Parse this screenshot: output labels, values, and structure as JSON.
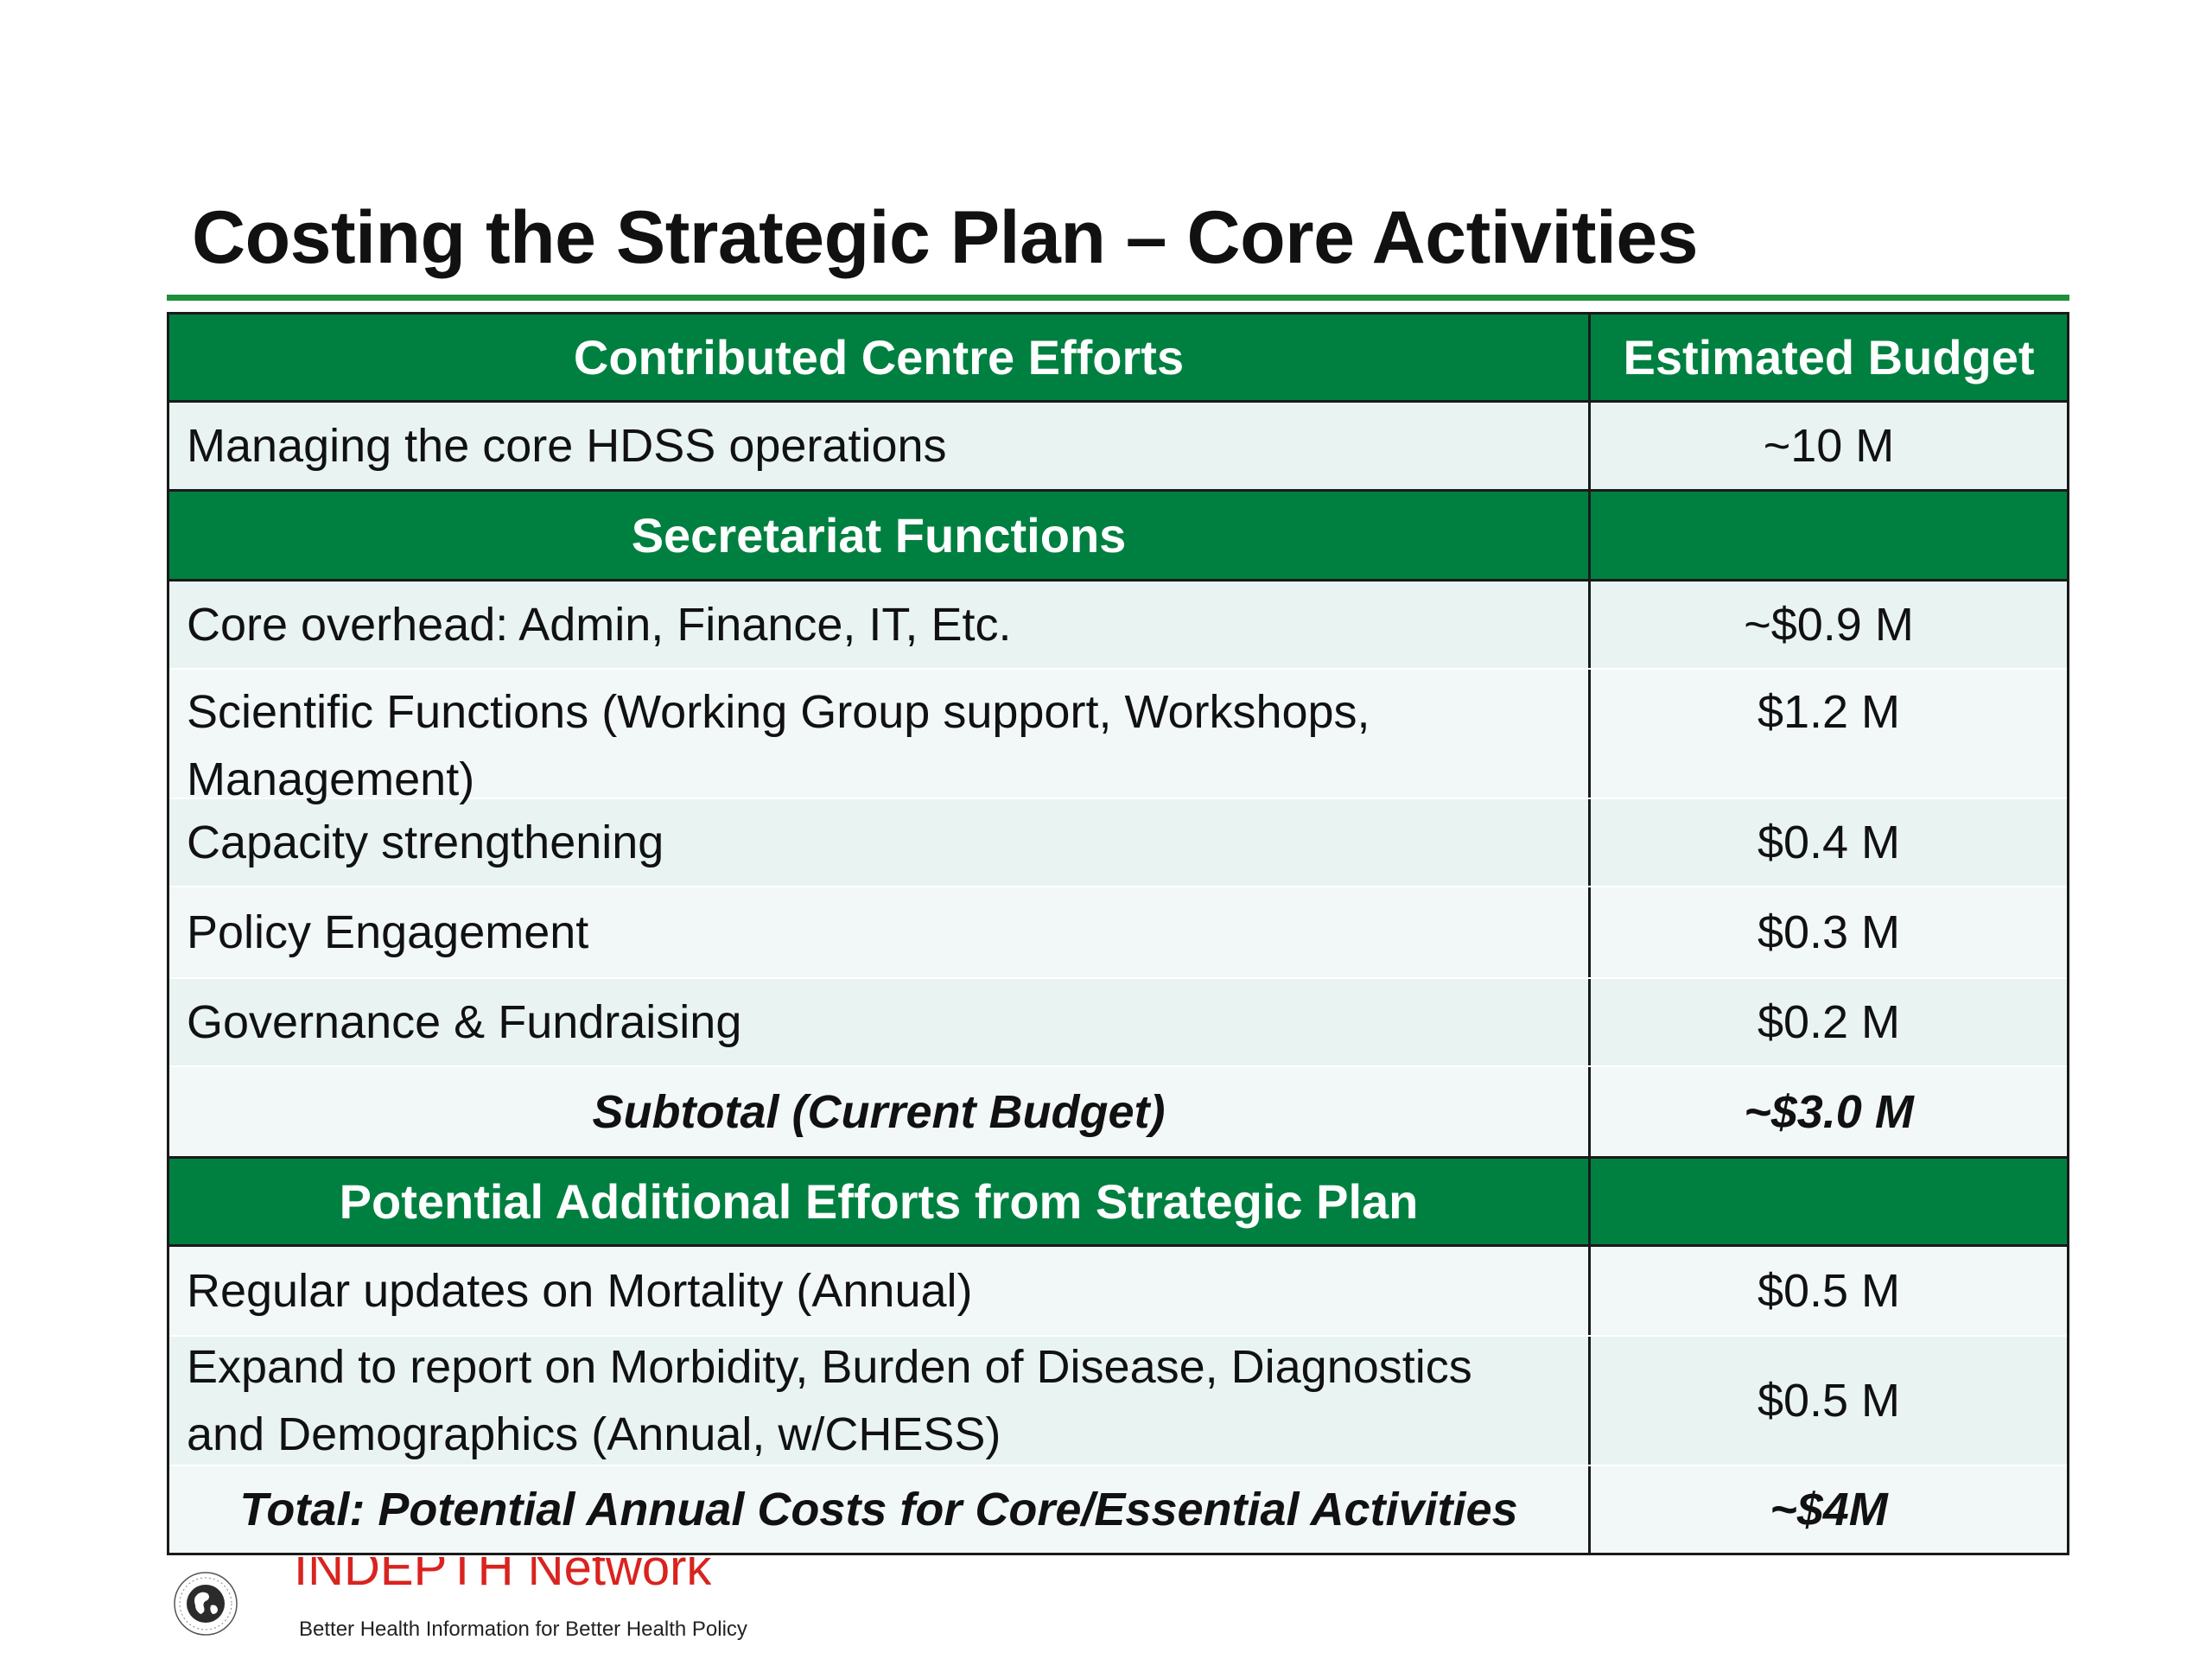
{
  "title": "Costing the Strategic Plan – Core Activities",
  "table": {
    "header": {
      "left": "Contributed Centre Efforts",
      "right": "Estimated Budget"
    },
    "contributed_row": {
      "label": "Managing the core HDSS operations",
      "value": "~10 M"
    },
    "secretariat_header": {
      "left": "Secretariat Functions",
      "right": ""
    },
    "secretariat_rows": [
      {
        "label": "Core overhead: Admin, Finance, IT, Etc.",
        "value": "~$0.9 M"
      },
      {
        "label": "Scientific Functions (Working Group support, Workshops, Management)",
        "value": "$1.2 M"
      },
      {
        "label": "Capacity strengthening",
        "value": "$0.4 M"
      },
      {
        "label": "Policy Engagement",
        "value": "$0.3 M"
      },
      {
        "label": "Governance & Fundraising",
        "value": "$0.2 M"
      }
    ],
    "subtotal": {
      "label": "Subtotal (Current Budget)",
      "value": "~$3.0 M"
    },
    "additional_header": {
      "left": "Potential Additional Efforts from Strategic Plan",
      "right": ""
    },
    "additional_rows": [
      {
        "label": "Regular updates on Mortality (Annual)",
        "value": "$0.5 M"
      },
      {
        "label": "Expand to report on Morbidity, Burden of Disease, Diagnostics and Demographics (Annual, w/CHESS)",
        "value": "$0.5 M"
      }
    ],
    "total": {
      "label": "Total: Potential Annual Costs for Core/Essential Activities",
      "value": "~$4M"
    }
  },
  "footer": {
    "logo_icon": "globe-logo-icon",
    "brand": "INDEPTH Network",
    "tagline": "Better Health Information for Better Health Policy"
  },
  "colors": {
    "header_green": "#008040",
    "rule_green": "#1f8f3a",
    "row_light": "#e8f3f2",
    "row_lighter": "#f2f7f8",
    "brand_red": "#d9231f"
  }
}
